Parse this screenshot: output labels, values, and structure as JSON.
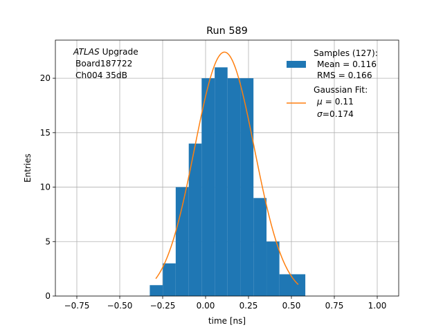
{
  "chart_data": {
    "type": "bar",
    "title": "Run 589",
    "xlabel": "time [ns]",
    "ylabel": "Entries",
    "xlim": [
      -0.875,
      1.125
    ],
    "ylim": [
      0,
      23.5
    ],
    "grid": true,
    "x_ticks": [
      -0.75,
      -0.5,
      -0.25,
      0.0,
      0.25,
      0.5,
      0.75,
      1.0
    ],
    "x_tick_labels": [
      "−0.75",
      "−0.50",
      "−0.25",
      "0.00",
      "0.25",
      "0.50",
      "0.75",
      "1.00"
    ],
    "y_ticks": [
      0,
      5,
      10,
      15,
      20
    ],
    "y_tick_labels": [
      "0",
      "5",
      "10",
      "15",
      "20"
    ],
    "bin_edges": [
      -0.325,
      -0.249,
      -0.174,
      -0.098,
      -0.023,
      0.053,
      0.128,
      0.204,
      0.279,
      0.355,
      0.43,
      0.506,
      0.581
    ],
    "counts": [
      1,
      3,
      10,
      14,
      20,
      21,
      20,
      20,
      9,
      5,
      2,
      2
    ],
    "fit": {
      "name": "Gaussian Fit",
      "amplitude": 22.4,
      "mu": 0.11,
      "sigma": 0.174,
      "x_range": [
        -0.29,
        0.54
      ]
    },
    "annotation": {
      "line1_italic": "ATLAS",
      "line1_rest": " Upgrade",
      "line2": "Board187722",
      "line3": "Ch004 35dB"
    },
    "legend": {
      "placement": "upper right",
      "samples_line1": "Samples (127):",
      "samples_line2": "Mean = 0.116",
      "samples_line3": "RMS = 0.166",
      "fit_line1": "Gaussian Fit:",
      "fit_mu_symbol": "μ",
      "fit_mu_text": " = 0.11",
      "fit_sigma_symbol": "σ",
      "fit_sigma_text": "=0.174"
    },
    "colors": {
      "bars": "#1f77b4",
      "fit_line": "#ff7f0e",
      "grid": "#b0b0b0",
      "axes": "#000000"
    }
  }
}
